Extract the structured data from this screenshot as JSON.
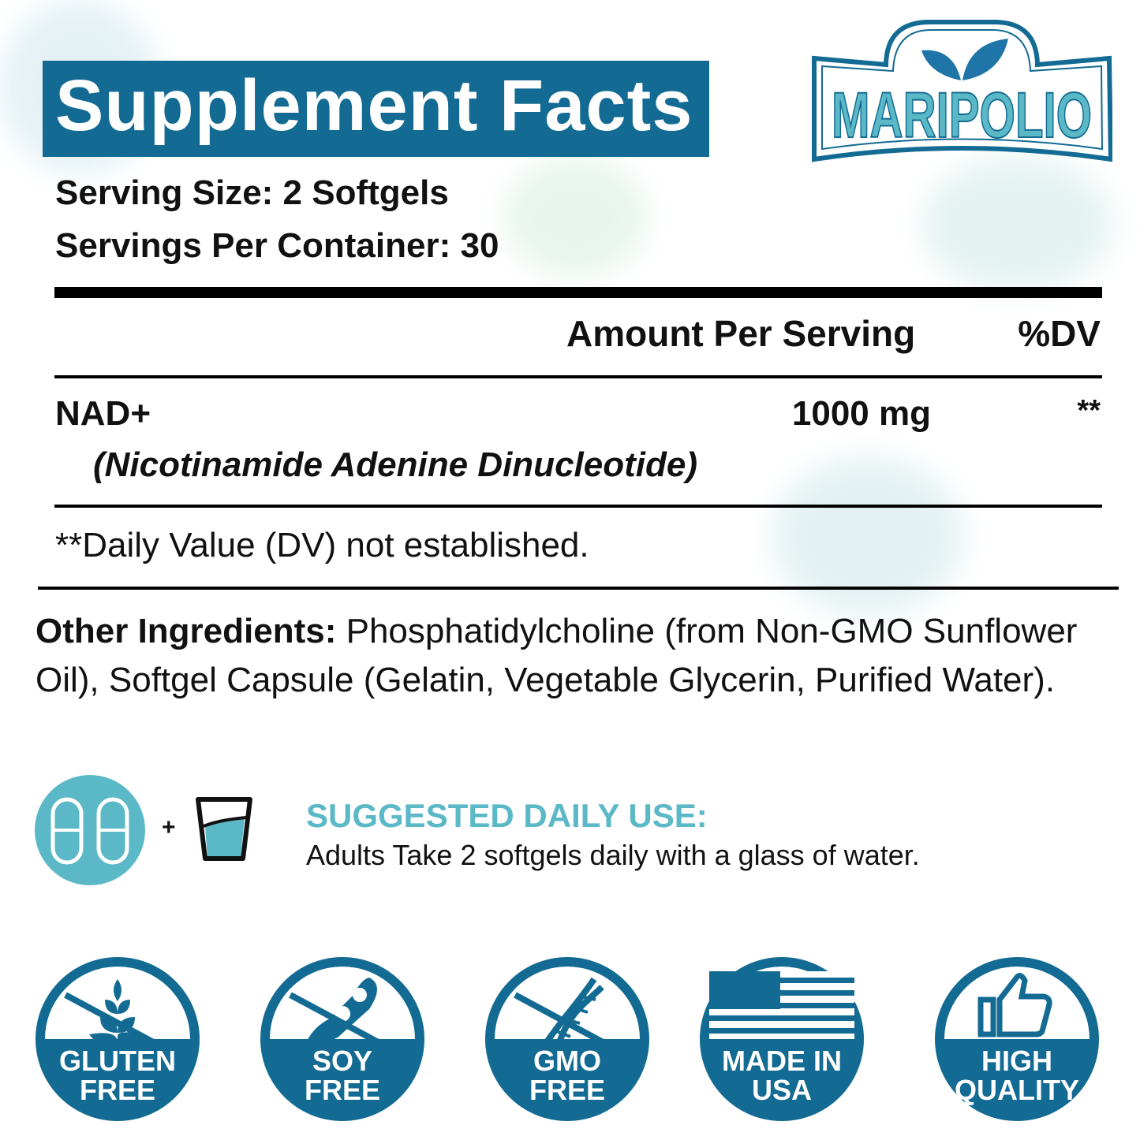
{
  "brand": {
    "name": "MARIPOLIO",
    "primary_color": "#136b93",
    "accent_color": "#5bb8c6"
  },
  "facts": {
    "title": "Supplement Facts",
    "serving_size": "Serving Size: 2 Softgels",
    "servings_per_container": "Servings Per Container: 30",
    "col_amount": "Amount Per Serving",
    "col_dv": "%DV",
    "ingredient": {
      "name": "NAD+",
      "subname": "(Nicotinamide Adenine Dinucleotide)",
      "amount": "1000 mg",
      "dv": "**"
    },
    "footnote": "**Daily Value (DV) not established."
  },
  "other_ingredients": {
    "label": "Other Ingredients:",
    "line1": "Phosphatidylcholine (from Non-GMO Sunflower",
    "line2": "Oil), Softgel Capsule (Gelatin, Vegetable Glycerin, Purified Water)."
  },
  "usage": {
    "plus": "+",
    "heading": "SUGGESTED DAILY USE:",
    "text": "Adults Take 2 softgels daily with a glass of water.",
    "icons": [
      "softgels-icon",
      "water-glass-icon"
    ]
  },
  "badges": [
    {
      "icon": "wheat-icon",
      "line1": "GLUTEN",
      "line2": "FREE"
    },
    {
      "icon": "soybean-icon",
      "line1": "SOY",
      "line2": "FREE"
    },
    {
      "icon": "dna-icon",
      "line1": "GMO",
      "line2": "FREE"
    },
    {
      "icon": "us-flag-icon",
      "line1": "MADE IN",
      "line2": "USA"
    },
    {
      "icon": "thumbs-up-icon",
      "line1": "HIGH",
      "line2": "QUALITY"
    }
  ]
}
